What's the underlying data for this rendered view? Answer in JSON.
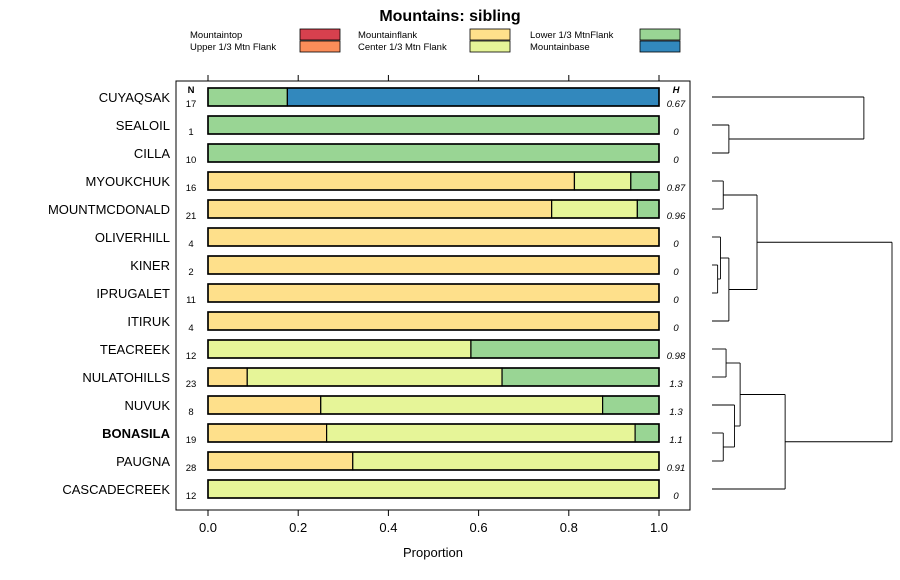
{
  "chart_data": {
    "type": "bar",
    "stacked": true,
    "orientation": "horizontal",
    "title": "Mountains: sibling",
    "xlabel": "Proportion",
    "xlim": [
      0,
      1
    ],
    "xticks": [
      "0.0",
      "0.2",
      "0.4",
      "0.6",
      "0.8",
      "1.0"
    ],
    "n_header": "N",
    "h_header": "H",
    "legend": [
      {
        "name": "Mountaintop",
        "color": "#D7404E"
      },
      {
        "name": "Upper 1/3 Mtn Flank",
        "color": "#FC8D59"
      },
      {
        "name": "Mountainflank",
        "color": "#FEE08B"
      },
      {
        "name": "Center 1/3 Mtn Flank",
        "color": "#E6F598"
      },
      {
        "name": "Lower 1/3 MtnFlank",
        "color": "#99D594"
      },
      {
        "name": "Mountainbase",
        "color": "#3288BD"
      }
    ],
    "rows": [
      {
        "label": "CUYAQSAK",
        "n": "17",
        "h": "0.67",
        "bold": false,
        "values": [
          0,
          0,
          0,
          0,
          0.176,
          0.824
        ]
      },
      {
        "label": "SEALOIL",
        "n": "1",
        "h": "0",
        "bold": false,
        "values": [
          0,
          0,
          0,
          0,
          1,
          0
        ]
      },
      {
        "label": "CILLA",
        "n": "10",
        "h": "0",
        "bold": false,
        "values": [
          0,
          0,
          0,
          0,
          1,
          0
        ]
      },
      {
        "label": "MYOUKCHUK",
        "n": "16",
        "h": "0.87",
        "bold": false,
        "values": [
          0,
          0,
          0.8125,
          0.125,
          0.0625,
          0
        ]
      },
      {
        "label": "MOUNTMCDONALD",
        "n": "21",
        "h": "0.96",
        "bold": false,
        "values": [
          0,
          0,
          0.762,
          0.19,
          0.048,
          0
        ]
      },
      {
        "label": "OLIVERHILL",
        "n": "4",
        "h": "0",
        "bold": false,
        "values": [
          0,
          0,
          1,
          0,
          0,
          0
        ]
      },
      {
        "label": "KINER",
        "n": "2",
        "h": "0",
        "bold": false,
        "values": [
          0,
          0,
          1,
          0,
          0,
          0
        ]
      },
      {
        "label": "IPRUGALET",
        "n": "11",
        "h": "0",
        "bold": false,
        "values": [
          0,
          0,
          1,
          0,
          0,
          0
        ]
      },
      {
        "label": "ITIRUK",
        "n": "4",
        "h": "0",
        "bold": false,
        "values": [
          0,
          0,
          1,
          0,
          0,
          0
        ]
      },
      {
        "label": "TEACREEK",
        "n": "12",
        "h": "0.98",
        "bold": false,
        "values": [
          0,
          0,
          0,
          0.583,
          0.417,
          0
        ]
      },
      {
        "label": "NULATOHILLS",
        "n": "23",
        "h": "1.3",
        "bold": false,
        "values": [
          0,
          0,
          0.087,
          0.565,
          0.348,
          0
        ]
      },
      {
        "label": "NUVUK",
        "n": "8",
        "h": "1.3",
        "bold": false,
        "values": [
          0,
          0,
          0.25,
          0.625,
          0.125,
          0
        ]
      },
      {
        "label": "BONASILA",
        "n": "19",
        "h": "1.1",
        "bold": true,
        "values": [
          0,
          0,
          0.263,
          0.684,
          0.053,
          0
        ]
      },
      {
        "label": "PAUGNA",
        "n": "28",
        "h": "0.91",
        "bold": false,
        "values": [
          0,
          0,
          0.321,
          0.679,
          0,
          0
        ]
      },
      {
        "label": "CASCADECREEK",
        "n": "12",
        "h": "0",
        "bold": false,
        "values": [
          0,
          0,
          0,
          1,
          0,
          0
        ]
      }
    ],
    "dendrogram": {
      "leaves": [
        "CUYAQSAK",
        "SEALOIL",
        "CILLA",
        "MYOUKCHUK",
        "MOUNTMCDONALD",
        "OLIVERHILL",
        "KINER",
        "IPRUGALET",
        "ITIRUK",
        "TEACREEK",
        "NULATOHILLS",
        "NUVUK",
        "BONASILA",
        "PAUGNA",
        "CASCADECREEK"
      ],
      "merges": [
        {
          "a": "L1",
          "b": "L2",
          "height": 0.03
        },
        {
          "a": "L3",
          "b": "L4",
          "height": 0.02
        },
        {
          "a": "L6",
          "b": "L7",
          "height": 0.01
        },
        {
          "a": "L5",
          "b": "M2",
          "height": 0.015
        },
        {
          "a": "M3",
          "b": "L8",
          "height": 0.03
        },
        {
          "a": "M1",
          "b": "M4",
          "height": 0.08
        },
        {
          "a": "L9",
          "b": "L10",
          "height": 0.025
        },
        {
          "a": "L12",
          "b": "L13",
          "height": 0.02
        },
        {
          "a": "L11",
          "b": "M7",
          "height": 0.04
        },
        {
          "a": "M6",
          "b": "M8",
          "height": 0.05
        },
        {
          "a": "M9",
          "b": "L14",
          "height": 0.13
        },
        {
          "a": "L0",
          "b": "M0",
          "height": 0.27
        },
        {
          "a": "M10",
          "b": "M5",
          "height": 0.32
        }
      ],
      "max_height": 0.32
    }
  }
}
